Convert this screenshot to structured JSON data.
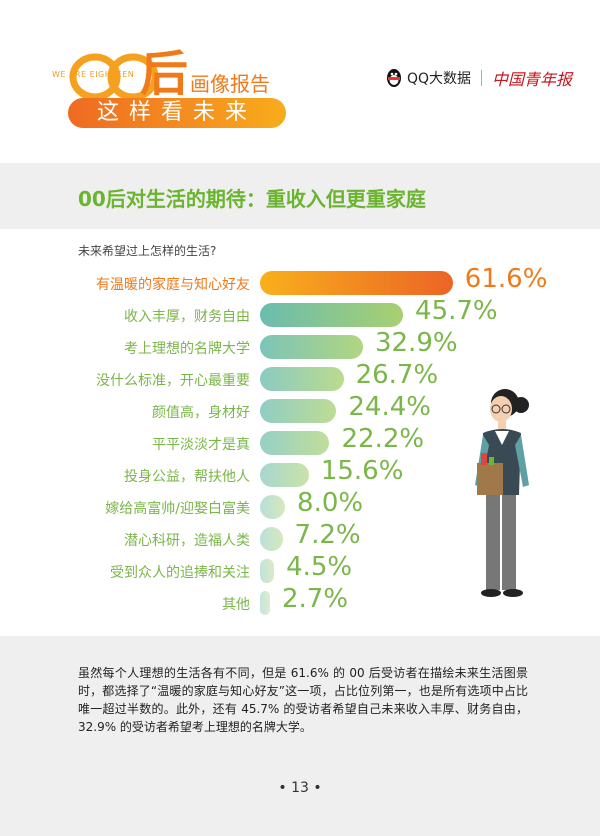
{
  "header": {
    "logo_tagline": "WE ARE EIGHTEEN",
    "logo_main": "后",
    "logo_sub": "画像报告",
    "logo_pill": "这样看未来",
    "brand_qq": "QQ大数据",
    "brand_paper": "中国青年报"
  },
  "section": {
    "title": "00后对生活的期待：重收入但更重家庭"
  },
  "chart_data": {
    "type": "bar",
    "orientation": "horizontal",
    "title": "未来希望过上怎样的生活?",
    "categories": [
      "有温暖的家庭与知心好友",
      "收入丰厚，财务自由",
      "考上理想的名牌大学",
      "没什么标准，开心最重要",
      "颜值高，身材好",
      "平平淡淡才是真",
      "投身公益，帮扶他人",
      "嫁给高富帅/迎娶白富美",
      "潜心科研，造福人类",
      "受到众人的追捧和关注",
      "其他"
    ],
    "values": [
      61.6,
      45.7,
      32.9,
      26.7,
      24.4,
      22.2,
      15.6,
      8.0,
      7.2,
      4.5,
      2.7
    ],
    "labels": [
      "61.6%",
      "45.7%",
      "32.9%",
      "26.7%",
      "24.4%",
      "22.2%",
      "15.6%",
      "8.0%",
      "7.2%",
      "4.5%",
      "2.7%"
    ],
    "unit": "%",
    "colors": {
      "highlight": "#f07a1a",
      "bar_start": "#6bbcb0",
      "bar_end": "#a8d070",
      "text": "#7ab648"
    }
  },
  "body": {
    "paragraph": "虽然每个人理想的生活各有不同，但是 61.6% 的 00 后受访者在描绘未来生活图景时，都选择了“温暖的家庭与知心好友”这一项，占比位列第一，也是所有选项中占比唯一超过半数的。此外，还有 45.7% 的受访者希望自己未来收入丰厚、财务自由，32.9% 的受访者希望考上理想的名牌大学。"
  },
  "footer": {
    "page": "• 13 •"
  }
}
